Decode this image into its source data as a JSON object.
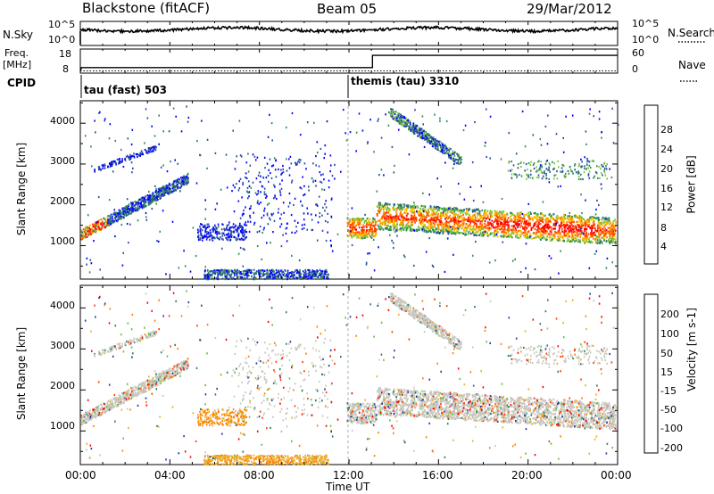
{
  "header": {
    "radar": "Blackstone (fitACF)",
    "beam": "Beam 05",
    "date": "29/Mar/2012"
  },
  "top_panels": {
    "nsky_label": "N.Sky",
    "nsky_ticks": [
      "10^5",
      "10^0"
    ],
    "nsearch_label": "N.Search",
    "nsearch_ticks": [
      "10^5",
      "10^0"
    ],
    "freq_label": "Freq.",
    "freq_unit": "[MHz]",
    "freq_ticks": [
      "18",
      "8"
    ],
    "nave_label": "Nave",
    "nave_ticks": [
      "60",
      "0"
    ],
    "cpid_label": "CPID",
    "cpid_modes": [
      "tau (fast) 503",
      "themis (tau) 3310"
    ]
  },
  "colors": {
    "power": [
      "#0000ff",
      "#2a4ea0",
      "#2e8b57",
      "#7cc63c",
      "#ffc000",
      "#ff8000",
      "#ff4000",
      "#ff0000"
    ],
    "velocity": [
      "#2a3aa0",
      "#2e7a60",
      "#5ec43c",
      "#c8c8c0",
      "#e8b030",
      "#ff8000",
      "#ff4000",
      "#ff0000"
    ],
    "ground_scatter": "#c8c8c0"
  },
  "chart_data": [
    {
      "type": "heatmap",
      "name": "power",
      "ylabel": "Slant Range [km]",
      "xlim": [
        "00:00",
        "24:00"
      ],
      "ylim": [
        180,
        4550
      ],
      "yticks": [
        "1000",
        "2000",
        "3000",
        "4000"
      ],
      "colorbar_label": "Power [dB]",
      "colorbar_ticks": [
        "4",
        "8",
        "12",
        "16",
        "20",
        "24",
        "28"
      ],
      "features": [
        {
          "time_range": [
            0.0,
            4.8
          ],
          "range_km": [
            1250,
            2700
          ],
          "power_dB": [
            4,
            28
          ]
        },
        {
          "time_range": [
            12.0,
            24.0
          ],
          "range_km": [
            1200,
            2100
          ],
          "power_dB": [
            8,
            30
          ]
        },
        {
          "time_range": [
            14.0,
            17.0
          ],
          "range_km": [
            3300,
            4300
          ],
          "power_dB": [
            4,
            16
          ]
        }
      ]
    },
    {
      "type": "heatmap",
      "name": "velocity",
      "ylabel": "Slant Range [km]",
      "xlabel": "Time UT",
      "xlim": [
        "00:00",
        "24:00"
      ],
      "xticks": [
        "00:00",
        "04:00",
        "08:00",
        "12:00",
        "16:00",
        "20:00",
        "00:00"
      ],
      "ylim": [
        180,
        4550
      ],
      "yticks": [
        "1000",
        "2000",
        "3000",
        "4000"
      ],
      "colorbar_label": "Velocity [m s-1]",
      "colorbar_ticks": [
        "200",
        "100",
        "50",
        "15",
        "-15",
        "-50",
        "-100",
        "-200"
      ]
    }
  ]
}
